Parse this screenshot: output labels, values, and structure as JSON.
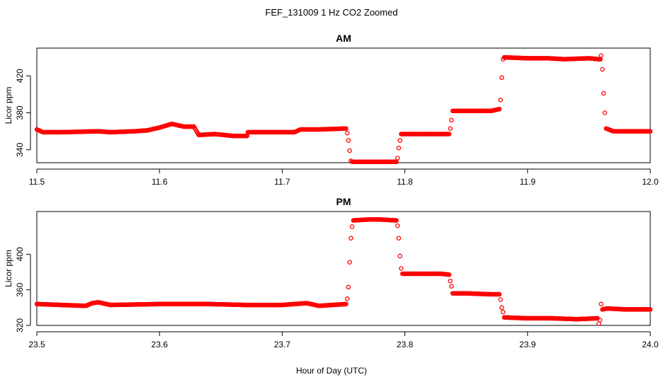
{
  "figure": {
    "title": "FEF_131009  1 Hz CO2 Zoomed",
    "xlabel": "Hour of Day (UTC)"
  },
  "chart_data": [
    {
      "type": "scatter",
      "title": "AM",
      "xlabel": "",
      "ylabel": "Licor ppm",
      "xlim": [
        11.5,
        12.0
      ],
      "ylim": [
        326,
        450
      ],
      "xticks": [
        "11.5",
        "11.6",
        "11.7",
        "11.8",
        "11.9",
        "12.0"
      ],
      "yticks": [
        "340",
        "380",
        "420"
      ],
      "marker_color": "#ff0000",
      "grid": false,
      "series": [
        {
          "x": [
            11.5,
            11.505,
            11.52,
            11.55,
            11.56,
            11.58,
            11.59,
            11.6,
            11.61,
            11.62,
            11.628,
            11.632,
            11.645,
            11.66,
            11.67,
            11.672,
            11.69,
            11.71,
            11.715,
            11.73,
            11.752,
            11.753,
            11.754,
            11.755,
            11.756,
            11.757,
            11.77,
            11.785,
            11.793,
            11.794,
            11.795,
            11.796,
            11.797,
            11.81,
            11.83,
            11.836,
            11.837,
            11.838,
            11.839,
            11.85,
            11.87,
            11.877,
            11.878,
            11.879,
            11.88,
            11.881,
            11.9,
            11.917,
            11.93,
            11.95,
            11.958,
            11.96,
            11.961,
            11.962,
            11.963,
            11.964,
            11.97,
            11.99,
            12.0
          ],
          "y": [
            362,
            359,
            359,
            360,
            359,
            360,
            361,
            364,
            368,
            365,
            365,
            356,
            357,
            355,
            355,
            359,
            359,
            359,
            362,
            362,
            363,
            358,
            350,
            339,
            328,
            327,
            327,
            327,
            327,
            331,
            342,
            350,
            357,
            357,
            357,
            357,
            363,
            372,
            382,
            382,
            382,
            384,
            394,
            418,
            438,
            440,
            439,
            439,
            438,
            439,
            438,
            442,
            427,
            401,
            380,
            363,
            360,
            360,
            360
          ]
        }
      ]
    },
    {
      "type": "scatter",
      "title": "PM",
      "xlabel": "Hour of Day (UTC)",
      "ylabel": "Licor ppm",
      "xlim": [
        23.5,
        24.0
      ],
      "ylim": [
        320,
        448
      ],
      "xticks": [
        "23.5",
        "23.6",
        "23.7",
        "23.8",
        "23.9",
        "24.0"
      ],
      "yticks": [
        "320",
        "360",
        "400"
      ],
      "marker_color": "#ff0000",
      "grid": false,
      "series": [
        {
          "x": [
            23.5,
            23.52,
            23.54,
            23.545,
            23.55,
            23.56,
            23.6,
            23.64,
            23.67,
            23.7,
            23.71,
            23.72,
            23.73,
            23.752,
            23.753,
            23.754,
            23.755,
            23.756,
            23.757,
            23.758,
            23.77,
            23.78,
            23.793,
            23.794,
            23.795,
            23.796,
            23.797,
            23.798,
            23.81,
            23.83,
            23.836,
            23.837,
            23.838,
            23.839,
            23.85,
            23.87,
            23.877,
            23.878,
            23.879,
            23.88,
            23.881,
            23.9,
            23.92,
            23.94,
            23.957,
            23.958,
            23.959,
            23.96,
            23.961,
            23.965,
            23.98,
            24.0
          ],
          "y": [
            344,
            343,
            342,
            345,
            346,
            343,
            344,
            344,
            343,
            343,
            344,
            345,
            342,
            344,
            350,
            363,
            391,
            418,
            431,
            438,
            439,
            439,
            438,
            432,
            418,
            398,
            384,
            378,
            378,
            378,
            377,
            370,
            364,
            356,
            356,
            355,
            355,
            349,
            340,
            335,
            329,
            328,
            328,
            327,
            328,
            322,
            326,
            344,
            338,
            339,
            338,
            338
          ]
        }
      ]
    }
  ]
}
